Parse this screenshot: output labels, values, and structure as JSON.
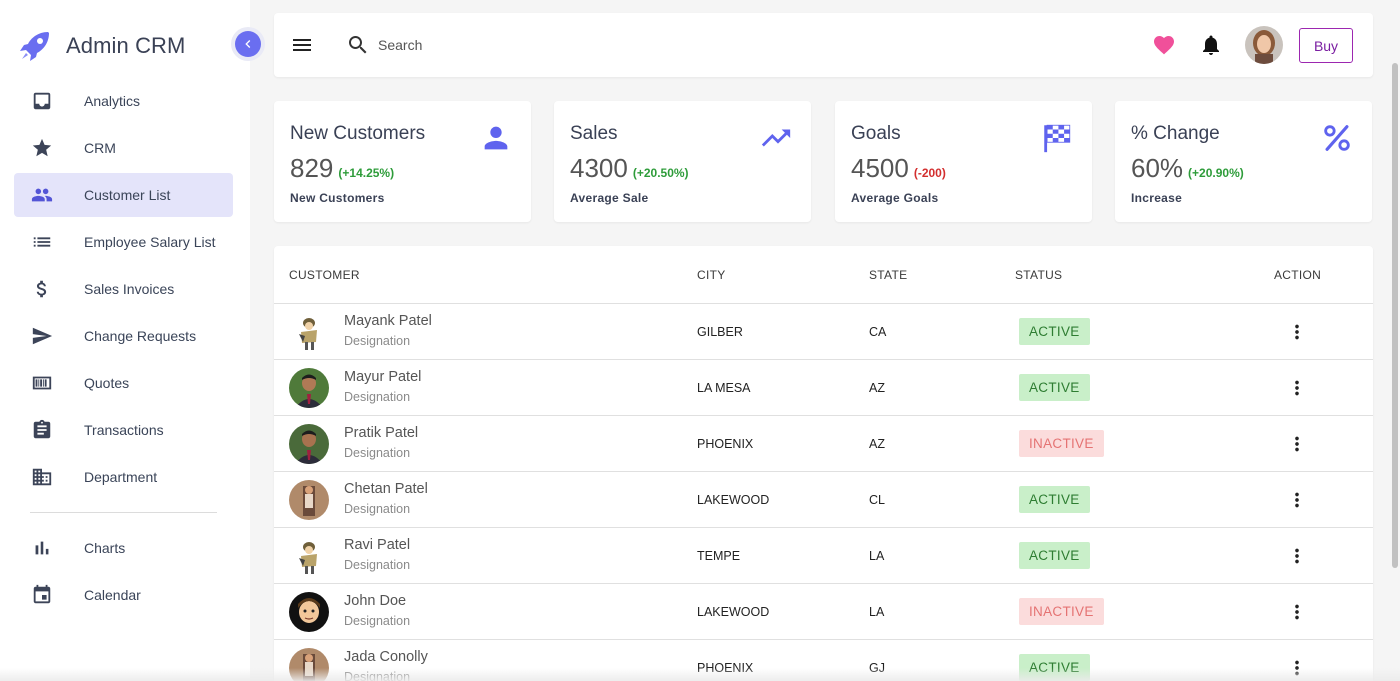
{
  "brand": {
    "title": "Admin CRM"
  },
  "sidebar": {
    "items": [
      {
        "label": "Analytics",
        "icon": "inbox-icon"
      },
      {
        "label": "CRM",
        "icon": "star-icon"
      },
      {
        "label": "Customer List",
        "icon": "people-icon",
        "active": true
      },
      {
        "label": "Employee Salary List",
        "icon": "list-icon"
      },
      {
        "label": "Sales Invoices",
        "icon": "dollar-icon"
      },
      {
        "label": "Change Requests",
        "icon": "send-icon"
      },
      {
        "label": "Quotes",
        "icon": "quote-icon"
      },
      {
        "label": "Transactions",
        "icon": "clipboard-icon"
      },
      {
        "label": "Department",
        "icon": "building-icon"
      }
    ],
    "secondary": [
      {
        "label": "Charts",
        "icon": "bar-chart-icon"
      },
      {
        "label": "Calendar",
        "icon": "calendar-icon"
      }
    ]
  },
  "topbar": {
    "search_placeholder": "Search",
    "buy_label": "Buy"
  },
  "stats": [
    {
      "title": "New Customers",
      "value": "829",
      "change": "(+14.25%)",
      "change_color": "#2e9c3a",
      "subtitle": "New Customers",
      "icon": "person-icon"
    },
    {
      "title": "Sales",
      "value": "4300",
      "change": "(+20.50%)",
      "change_color": "#2e9c3a",
      "subtitle": "Average Sale",
      "icon": "trending-up-icon"
    },
    {
      "title": "Goals",
      "value": "4500",
      "change": "(-200)",
      "change_color": "#d32f2f",
      "subtitle": "Average Goals",
      "icon": "flag-icon"
    },
    {
      "title": "% Change",
      "value": "60%",
      "change": "(+20.90%)",
      "change_color": "#2e9c3a",
      "subtitle": "Increase",
      "icon": "percent-icon"
    }
  ],
  "table": {
    "headers": [
      "CUSTOMER",
      "CITY",
      "STATE",
      "STATUS",
      "ACTION"
    ],
    "rows": [
      {
        "name": "Mayank Patel",
        "designation": "Designation",
        "city": "GILBER",
        "state": "CA",
        "status": "ACTIVE"
      },
      {
        "name": "Mayur Patel",
        "designation": "Designation",
        "city": "LA MESA",
        "state": "AZ",
        "status": "ACTIVE"
      },
      {
        "name": "Pratik Patel",
        "designation": "Designation",
        "city": "PHOENIX",
        "state": "AZ",
        "status": "INACTIVE"
      },
      {
        "name": "Chetan Patel",
        "designation": "Designation",
        "city": "LAKEWOOD",
        "state": "CL",
        "status": "ACTIVE"
      },
      {
        "name": "Ravi Patel",
        "designation": "Designation",
        "city": "TEMPE",
        "state": "LA",
        "status": "ACTIVE"
      },
      {
        "name": "John Doe",
        "designation": "Designation",
        "city": "LAKEWOOD",
        "state": "LA",
        "status": "INACTIVE"
      },
      {
        "name": "Jada Conolly",
        "designation": "Designation",
        "city": "PHOENIX",
        "state": "GJ",
        "status": "ACTIVE"
      }
    ]
  },
  "colors": {
    "accent": "#6a6ef0",
    "active_bg": "#c9efc9",
    "inactive_bg": "#fbdcdc",
    "heart": "#f0509a"
  }
}
